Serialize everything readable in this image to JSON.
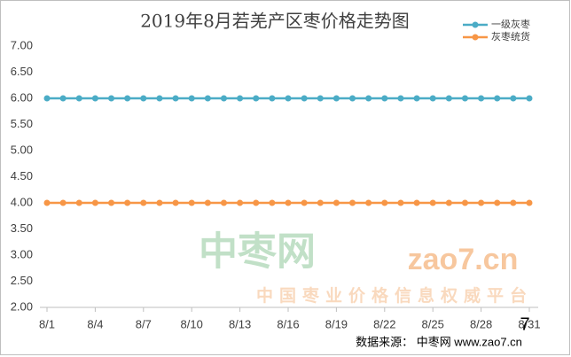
{
  "chart_data": {
    "type": "line",
    "title": "2019年8月若羌产区枣价格走势图",
    "categories": [
      "8/1",
      null,
      null,
      "8/4",
      null,
      null,
      "8/7",
      null,
      null,
      "8/10",
      null,
      null,
      "8/13",
      null,
      null,
      "8/16",
      null,
      null,
      "8/19",
      null,
      null,
      "8/22",
      null,
      null,
      "8/25",
      null,
      null,
      "8/28",
      null,
      null,
      "8/31"
    ],
    "series": [
      {
        "name": "一级灰枣",
        "color": "#4bacc6",
        "values": [
          6,
          6,
          6,
          6,
          6,
          6,
          6,
          6,
          6,
          6,
          6,
          6,
          6,
          6,
          6,
          6,
          6,
          6,
          6,
          6,
          6,
          6,
          6,
          6,
          6,
          6,
          6,
          6,
          6,
          6,
          6
        ]
      },
      {
        "name": "灰枣统货",
        "color": "#f79646",
        "values": [
          4,
          4,
          4,
          4,
          4,
          4,
          4,
          4,
          4,
          4,
          4,
          4,
          4,
          4,
          4,
          4,
          4,
          4,
          4,
          4,
          4,
          4,
          4,
          4,
          4,
          4,
          4,
          4,
          4,
          4,
          4
        ]
      }
    ],
    "ylim": [
      2,
      7
    ],
    "yticks": [
      {
        "value": 2,
        "label": "2.00"
      },
      {
        "value": 2.5,
        "label": "2.50"
      },
      {
        "value": 3,
        "label": "3.00"
      },
      {
        "value": 3.5,
        "label": "3.50"
      },
      {
        "value": 4,
        "label": "4.00"
      },
      {
        "value": 4.5,
        "label": "4.50"
      },
      {
        "value": 5,
        "label": "5.00"
      },
      {
        "value": 5.5,
        "label": "5.50"
      },
      {
        "value": 6,
        "label": "6.00"
      },
      {
        "value": 6.5,
        "label": "6.50"
      },
      {
        "value": 7,
        "label": "7.00"
      }
    ],
    "grid": false,
    "legend": "top-right",
    "watermark": {
      "name": "中枣网",
      "domain": "zao7.cn",
      "slogan": "中国枣业价格信息权威平台"
    },
    "source": "数据来源：  中枣网 www.zao7.cn",
    "page_number": "7"
  }
}
